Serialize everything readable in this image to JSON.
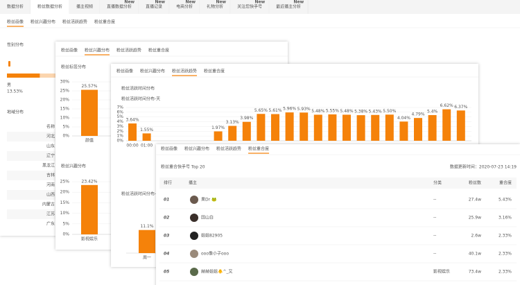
{
  "top_nav": {
    "active": 1,
    "tabs": [
      {
        "label": "数据分析"
      },
      {
        "label": "粉丝数据分析"
      },
      {
        "label": "播主视频"
      },
      {
        "label": "直播数据分析",
        "badge": "New"
      },
      {
        "label": "直播记录",
        "badge": "New"
      },
      {
        "label": "电商分析",
        "badge": "New"
      },
      {
        "label": "礼物分析",
        "badge": "New"
      },
      {
        "label": "关注您快手号",
        "badge": "New"
      },
      {
        "label": "最近播主分析",
        "badge": "New"
      }
    ]
  },
  "panel1": {
    "active": 0,
    "tabs": [
      "粉丝画像",
      "粉丝兴趣分布",
      "粉丝活跃趋势",
      "粉丝重合度"
    ],
    "gender_title": "性别分布",
    "gender": {
      "label": "男",
      "value": 13.53,
      "value_label": "13.53%"
    },
    "region_title": "地域分布",
    "region_rows": [
      "名称",
      "河北",
      "山东",
      "辽宁",
      "黑龙江",
      "吉林",
      "河南",
      "山西",
      "内蒙古",
      "江苏",
      "广东"
    ]
  },
  "panel2": {
    "active": 1,
    "tabs": [
      "粉丝画像",
      "粉丝兴趣分布",
      "粉丝活跃趋势",
      "粉丝重合度"
    ],
    "charts": [
      {
        "type": "bar",
        "title": "粉丝标签分布",
        "color": "#f5820a",
        "categories": [
          "颜值"
        ],
        "values": [
          25.57
        ],
        "value_labels": [
          "25.57%"
        ],
        "ylim": [
          0,
          30
        ],
        "yticks": [
          {
            "value": 0,
            "label": "0%"
          },
          {
            "value": 5,
            "label": "5%"
          },
          {
            "value": 10,
            "label": "10%"
          },
          {
            "value": 15,
            "label": "15%"
          },
          {
            "value": 20,
            "label": "20%"
          },
          {
            "value": 25,
            "label": "25%"
          },
          {
            "value": 30,
            "label": "30%"
          }
        ],
        "grid": true
      },
      {
        "type": "bar",
        "title": "粉丝兴趣分布",
        "color": "#f5820a",
        "categories": [
          "影视娱乐"
        ],
        "values": [
          23.42
        ],
        "value_labels": [
          "23.42%"
        ],
        "ylim": [
          0,
          25
        ],
        "yticks": [
          {
            "value": 0,
            "label": "0%"
          },
          {
            "value": 5,
            "label": "5%"
          },
          {
            "value": 10,
            "label": "10%"
          },
          {
            "value": 15,
            "label": "15%"
          },
          {
            "value": 20,
            "label": "20%"
          },
          {
            "value": 25,
            "label": "25%"
          }
        ],
        "grid": true
      }
    ]
  },
  "panel3": {
    "active": 2,
    "tabs": [
      "粉丝画像",
      "粉丝兴趣分布",
      "粉丝活跃趋势",
      "粉丝重合度"
    ],
    "section_title": "粉丝活跃时间分布",
    "charts": [
      {
        "type": "bar",
        "title": "粉丝活跃时间分布-天",
        "color": "#f5820a",
        "categories": [
          "00:00",
          "01:00",
          null,
          null,
          null,
          null,
          null,
          null,
          null,
          null,
          null,
          null,
          null,
          null,
          null,
          null,
          null,
          null,
          null,
          null,
          null,
          null,
          null,
          null
        ],
        "values": [
          3.64,
          1.55,
          null,
          null,
          null,
          null,
          1.97,
          3.13,
          3.98,
          5.65,
          5.61,
          5.96,
          5.93,
          5.48,
          5.55,
          5.48,
          5.38,
          5.43,
          5.5,
          4.04,
          4.79,
          5.4,
          6.62,
          6.37
        ],
        "value_labels": [
          "3.64%",
          "1.55%",
          null,
          null,
          null,
          null,
          "1.97%",
          "3.13%",
          "3.98%",
          "5.65%",
          "5.61%",
          "5.96%",
          "5.93%",
          "5.48%",
          "5.55%",
          "5.48%",
          "5.38%",
          "5.43%",
          "5.50%",
          "4.04%",
          "4.79%",
          "5.4%",
          "6.62%",
          "6.37%"
        ],
        "ylim": [
          0,
          7
        ],
        "yticks": [
          {
            "value": 0,
            "label": "0%"
          },
          {
            "value": 1,
            "label": "1%"
          },
          {
            "value": 2,
            "label": "2%"
          },
          {
            "value": 3,
            "label": "3%"
          },
          {
            "value": 4,
            "label": "4%"
          },
          {
            "value": 5,
            "label": "5%"
          },
          {
            "value": 6,
            "label": "6%"
          },
          {
            "value": 7,
            "label": "7%"
          }
        ],
        "grid": true
      },
      {
        "type": "bar",
        "title": "粉丝活跃时间分布-周",
        "color": "#f5820a",
        "categories": [
          "周一"
        ],
        "values": [
          11.1
        ],
        "value_labels": [
          "11.1%"
        ],
        "ylim": [
          0,
          12
        ],
        "yticks": [],
        "grid": false
      }
    ]
  },
  "panel4": {
    "active": 3,
    "tabs": [
      "粉丝画像",
      "粉丝兴趣分布",
      "粉丝活跃趋势",
      "粉丝重合度"
    ],
    "title": "粉丝重合快手号 Top 20",
    "updated": "数据更新时间：2020-07-23 14:19",
    "columns": [
      "排行",
      "播主",
      "分类",
      "粉丝数",
      "重合度"
    ],
    "rows": [
      [
        "01",
        "果Dr 🐸",
        "--",
        "27.4w",
        "5.43%"
      ],
      [
        "02",
        "国山白",
        "--",
        "25.9w",
        "3.16%"
      ],
      [
        "03",
        "姐姐82905",
        "--",
        "2.6w",
        "2.33%"
      ],
      [
        "04",
        "ooo像小子ooo",
        "--",
        "40.1w",
        "2.33%"
      ],
      [
        "05",
        "赫赫姐姐🐥^_又",
        "影视娱乐",
        "73.4w",
        "2.33%"
      ]
    ]
  }
}
